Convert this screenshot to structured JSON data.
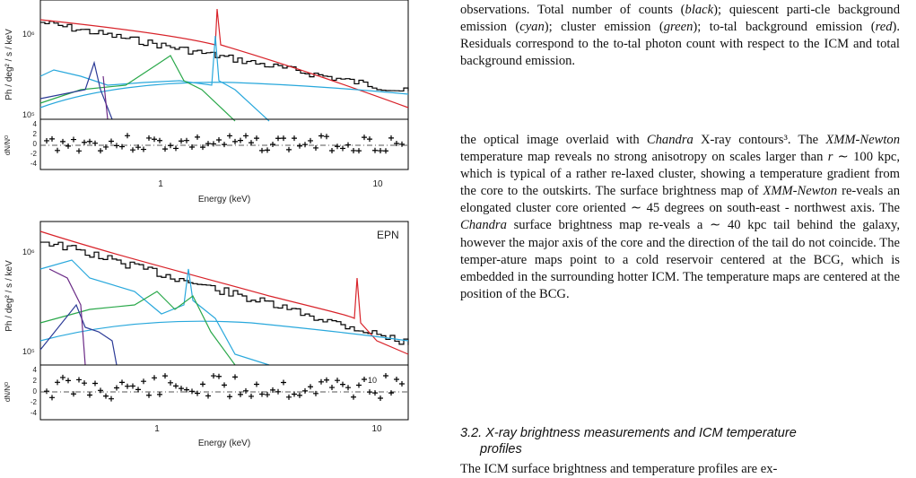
{
  "figure": {
    "panels": [
      {
        "label": "",
        "ylabel": "Ph / deg² / s / keV",
        "ytick_labels": [
          "10⁶",
          "10⁵"
        ],
        "residual_ylabel": "dN/Nᴼ",
        "residual_ticks": [
          "4",
          "2",
          "0",
          "-2",
          "-4"
        ],
        "xlabel": "Energy (keV)",
        "xtick_labels": [
          "1",
          "10"
        ]
      },
      {
        "label": "EPN",
        "ylabel": "Ph / deg² / s / keV",
        "ytick_labels": [
          "10⁶",
          "10⁵"
        ],
        "residual_ylabel": "dN/Nᴼ",
        "residual_ticks": [
          "4",
          "2",
          "0",
          "-2",
          "-4"
        ],
        "xlabel": "Energy (keV)",
        "xtick_labels": [
          "1",
          "10"
        ],
        "inner_tick_label": "10"
      }
    ],
    "colors": {
      "total_counts": "#000000",
      "quiescent_particle_background": "#29a8dc",
      "cluster_emission": "#2aa84a",
      "total_background": "#d8232a",
      "other_component_dark_blue": "#2c3b97",
      "other_component_purple": "#6a2a86",
      "residual_baseline": "#555555"
    }
  },
  "caption_tail": {
    "parts": [
      {
        "t": "observations. Total number of counts (",
        "i": false
      },
      {
        "t": "black",
        "i": true
      },
      {
        "t": "); quiescent parti-cle background emission (",
        "i": false
      },
      {
        "t": "cyan",
        "i": true
      },
      {
        "t": "); cluster emission (",
        "i": false
      },
      {
        "t": "green",
        "i": true
      },
      {
        "t": "); to-tal background emission (",
        "i": false
      },
      {
        "t": "red",
        "i": true
      },
      {
        "t": "). Residuals correspond to the to-tal photon count with respect to the ICM and total background emission.",
        "i": false
      }
    ]
  },
  "body_paragraph": {
    "parts": [
      {
        "t": "the optical image overlaid with ",
        "i": false
      },
      {
        "t": "Chandra",
        "i": true
      },
      {
        "t": " X-ray contours³. The ",
        "i": false
      },
      {
        "t": "XMM-Newton",
        "i": true
      },
      {
        "t": " temperature map reveals no strong anisotropy on scales larger than ",
        "i": false
      },
      {
        "t": "r",
        "i": true
      },
      {
        "t": " ∼ 100 kpc, which is typical of a rather re-laxed cluster, showing a temperature gradient from the core to the outskirts. The surface brightness map of ",
        "i": false
      },
      {
        "t": "XMM-Newton",
        "i": true
      },
      {
        "t": " re-veals an elongated cluster core oriented ∼ 45 degrees on south-east - northwest axis. The ",
        "i": false
      },
      {
        "t": "Chandra",
        "i": true
      },
      {
        "t": " surface brightness map re-veals a ∼ 40 kpc tail behind the galaxy, however the major axis of the core and the direction of the tail do not coincide. The temper-ature maps point to a cold reservoir centered at the BCG, which is embedded in the surrounding hotter ICM. The temperature maps are centered at the position of the BCG.",
        "i": false
      }
    ]
  },
  "section": {
    "number": "3.2.",
    "title_line1": "X-ray brightness measurements and ICM temperature",
    "title_line2": "profiles"
  },
  "next_paragraph_start": "The ICM surface brightness and temperature profiles are ex-"
}
